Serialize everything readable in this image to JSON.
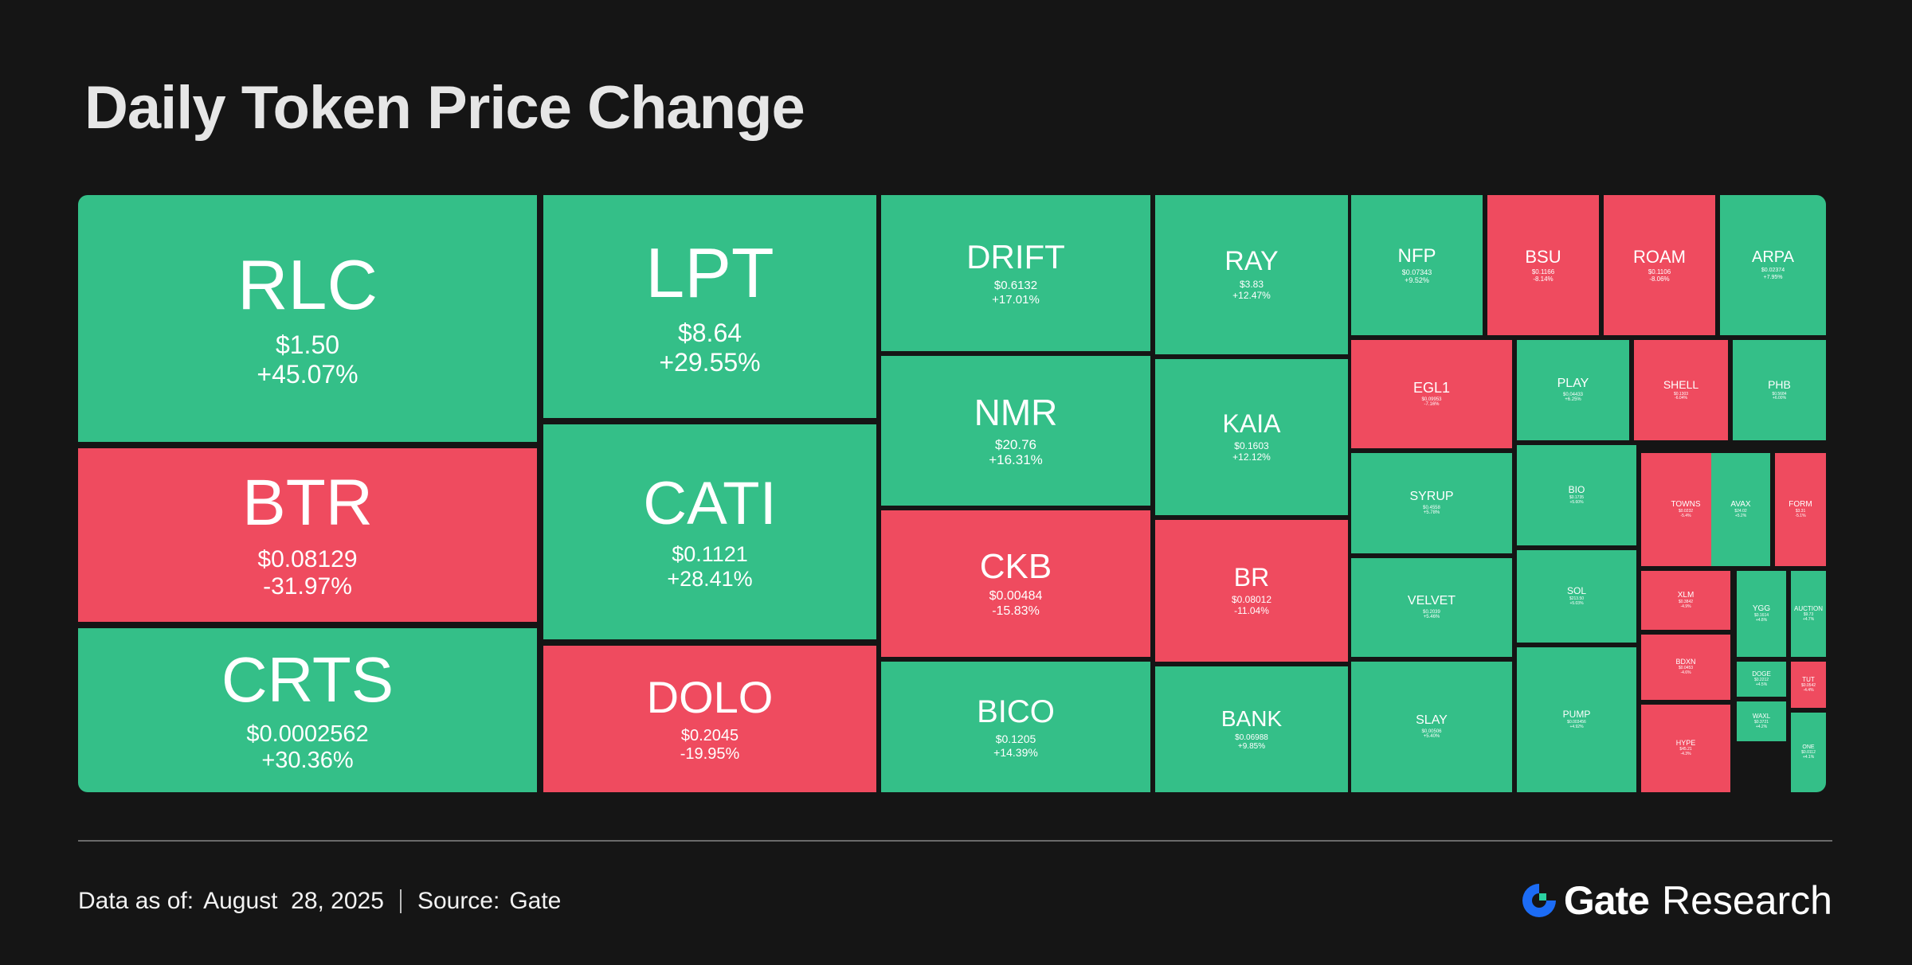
{
  "title": "Daily Token Price Change",
  "footer": {
    "data_label": "Data as of:",
    "date": "August  28, 2025",
    "source_label": "Source:",
    "source": "Gate"
  },
  "brand": {
    "name": "Gate",
    "suffix": "Research",
    "logo_icon": "gate-logo-icon"
  },
  "colors": {
    "up": "#34bf88",
    "down": "#ef4b5f",
    "background": "#151515"
  },
  "chart_data": {
    "type": "treemap",
    "title": "Daily Token Price Change",
    "tiles": [
      {
        "symbol": "RLC",
        "price": "$1.50",
        "change": "+45.07%",
        "pct": 45.07
      },
      {
        "symbol": "BTR",
        "price": "$0.08129",
        "change": "-31.97%",
        "pct": -31.97
      },
      {
        "symbol": "CRTS",
        "price": "$0.0002562",
        "change": "+30.36%",
        "pct": 30.36
      },
      {
        "symbol": "LPT",
        "price": "$8.64",
        "change": "+29.55%",
        "pct": 29.55
      },
      {
        "symbol": "CATI",
        "price": "$0.1121",
        "change": "+28.41%",
        "pct": 28.41
      },
      {
        "symbol": "DOLO",
        "price": "$0.2045",
        "change": "-19.95%",
        "pct": -19.95
      },
      {
        "symbol": "DRIFT",
        "price": "$0.6132",
        "change": "+17.01%",
        "pct": 17.01
      },
      {
        "symbol": "NMR",
        "price": "$20.76",
        "change": "+16.31%",
        "pct": 16.31
      },
      {
        "symbol": "CKB",
        "price": "$0.00484",
        "change": "-15.83%",
        "pct": -15.83
      },
      {
        "symbol": "BICO",
        "price": "$0.1205",
        "change": "+14.39%",
        "pct": 14.39
      },
      {
        "symbol": "RAY",
        "price": "$3.83",
        "change": "+12.47%",
        "pct": 12.47
      },
      {
        "symbol": "KAIA",
        "price": "$0.1603",
        "change": "+12.12%",
        "pct": 12.12
      },
      {
        "symbol": "BR",
        "price": "$0.08012",
        "change": "-11.04%",
        "pct": -11.04
      },
      {
        "symbol": "BANK",
        "price": "$0.06988",
        "change": "+9.85%",
        "pct": 9.85
      },
      {
        "symbol": "NFP",
        "price": "$0.07343",
        "change": "+9.52%",
        "pct": 9.52
      },
      {
        "symbol": "BSU",
        "price": "$0.1166",
        "change": "-8.14%",
        "pct": -8.14
      },
      {
        "symbol": "ROAM",
        "price": "$0.1106",
        "change": "-8.06%",
        "pct": -8.06
      },
      {
        "symbol": "ARPA",
        "price": "$0.02374",
        "change": "+7.95%",
        "pct": 7.95
      },
      {
        "symbol": "EGL1",
        "price": "$0.09953",
        "change": "-7.16%",
        "pct": -7.16
      },
      {
        "symbol": "PLAY",
        "price": "$0.04433",
        "change": "+6.25%",
        "pct": 6.25
      },
      {
        "symbol": "SHELL",
        "price": "$0.1303",
        "change": "-6.04%",
        "pct": -6.04
      },
      {
        "symbol": "PHB",
        "price": "$0.5684",
        "change": "+6.00%",
        "pct": 6.0
      },
      {
        "symbol": "SYRUP",
        "price": "$0.4558",
        "change": "+5.78%",
        "pct": 5.78
      },
      {
        "symbol": "BIO",
        "price": "$0.1735",
        "change": "+5.60%",
        "pct": 5.6
      },
      {
        "symbol": "TOWNS",
        "price": "$0.0232",
        "change": "-5.4%",
        "pct": -5.4
      },
      {
        "symbol": "AVAX",
        "price": "$24.02",
        "change": "+5.2%",
        "pct": 5.2
      },
      {
        "symbol": "FORM",
        "price": "$3.31",
        "change": "-5.1%",
        "pct": -5.1
      },
      {
        "symbol": "VELVET",
        "price": "$0.2039",
        "change": "+5.46%",
        "pct": 5.46
      },
      {
        "symbol": "SOL",
        "price": "$213.50",
        "change": "+5.03%",
        "pct": 5.03
      },
      {
        "symbol": "XLM",
        "price": "$0.3842",
        "change": "-4.9%",
        "pct": -4.9
      },
      {
        "symbol": "YGG",
        "price": "$0.1614",
        "change": "+4.8%",
        "pct": 4.8
      },
      {
        "symbol": "AUCTION",
        "price": "$9.73",
        "change": "+4.7%",
        "pct": 4.7
      },
      {
        "symbol": "SLAY",
        "price": "$0.00506",
        "change": "+5.40%",
        "pct": 5.4
      },
      {
        "symbol": "PUMP",
        "price": "$0.003456",
        "change": "+4.92%",
        "pct": 4.92
      },
      {
        "symbol": "BDXN",
        "price": "$0.0453",
        "change": "-4.6%",
        "pct": -4.6
      },
      {
        "symbol": "DOGE",
        "price": "$0.2212",
        "change": "+4.5%",
        "pct": 4.5
      },
      {
        "symbol": "TUT",
        "price": "$0.0542",
        "change": "-4.4%",
        "pct": -4.4
      },
      {
        "symbol": "HYPE",
        "price": "$45.21",
        "change": "-4.3%",
        "pct": -4.3
      },
      {
        "symbol": "WAXL",
        "price": "$0.3721",
        "change": "+4.2%",
        "pct": 4.2
      },
      {
        "symbol": "ONE",
        "price": "$0.0112",
        "change": "+4.1%",
        "pct": 4.1
      }
    ]
  }
}
